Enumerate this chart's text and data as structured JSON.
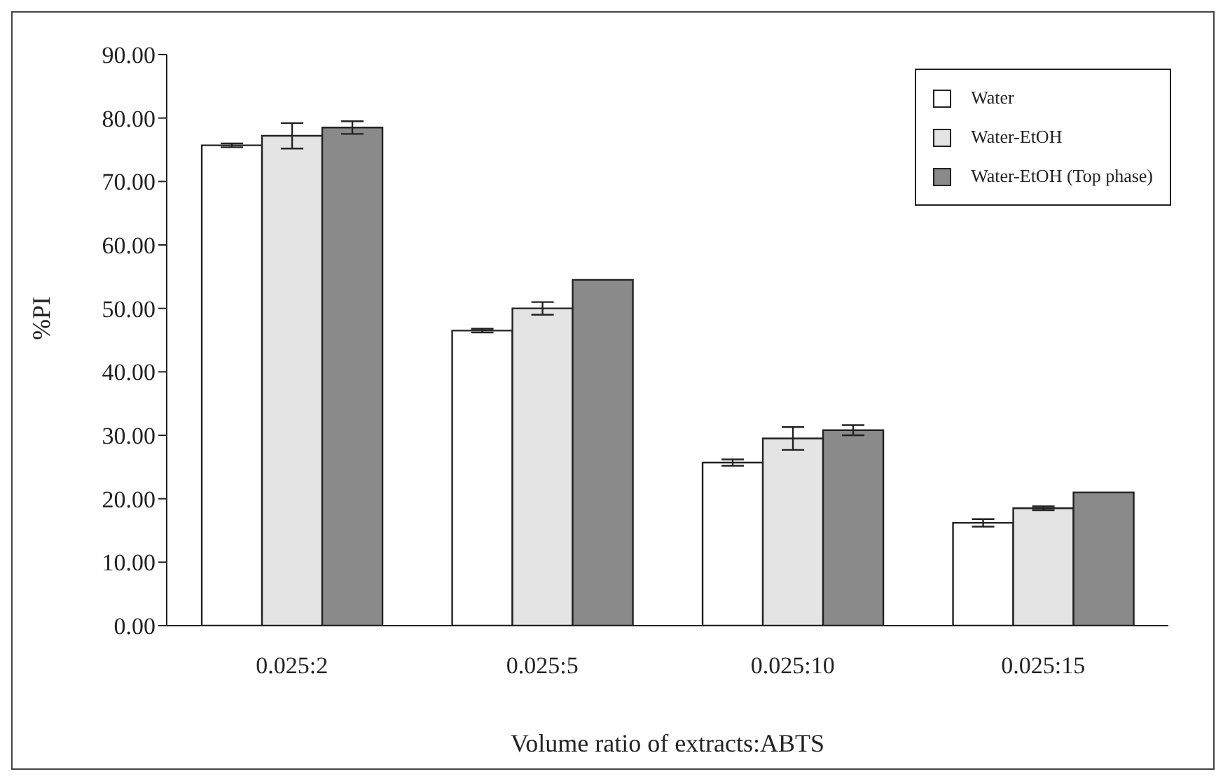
{
  "chart_data": {
    "type": "bar",
    "xlabel": "Volume ratio of extracts:ABTS",
    "ylabel": "%PI",
    "categories": [
      "0.025:2",
      "0.025:5",
      "0.025:10",
      "0.025:15"
    ],
    "series": [
      {
        "name": "Water",
        "color": "#ffffff",
        "values": [
          75.7,
          46.5,
          25.7,
          16.2
        ],
        "errors": [
          0.3,
          0.3,
          0.5,
          0.6
        ]
      },
      {
        "name": "Water-EtOH",
        "color": "#e4e4e4",
        "values": [
          77.2,
          50.0,
          29.5,
          18.5
        ],
        "errors": [
          2.0,
          1.0,
          1.8,
          0.3
        ]
      },
      {
        "name": "Water-EtOH (Top phase)",
        "color": "#8a8a8a",
        "values": [
          78.5,
          54.5,
          30.8,
          21.0
        ],
        "errors": [
          1.0,
          null,
          0.8,
          null
        ]
      }
    ],
    "ylim": [
      0,
      90
    ],
    "yticks": [
      {
        "value": 0,
        "label": "0.00"
      },
      {
        "value": 10,
        "label": "10.00"
      },
      {
        "value": 20,
        "label": "20.00"
      },
      {
        "value": 30,
        "label": "30.00"
      },
      {
        "value": 40,
        "label": "40.00"
      },
      {
        "value": 50,
        "label": "50.00"
      },
      {
        "value": 60,
        "label": "60.00"
      },
      {
        "value": 70,
        "label": "70.00"
      },
      {
        "value": 80,
        "label": "80.00"
      },
      {
        "value": 90,
        "label": "90.00"
      }
    ],
    "grid": false,
    "legend": "top right"
  }
}
